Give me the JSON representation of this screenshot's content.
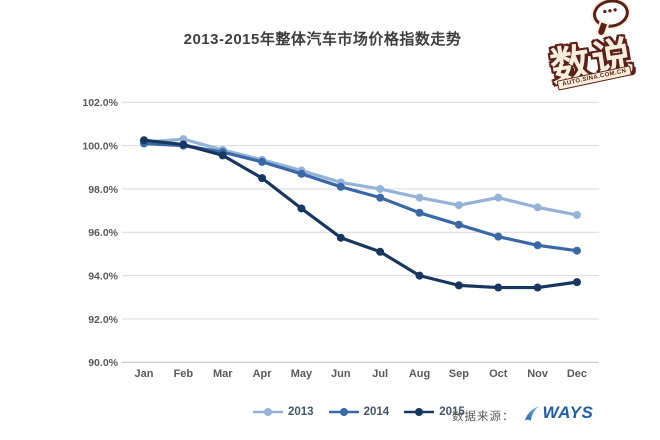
{
  "header": {
    "title": "2013-2015年整体汽车市场价格指数走势",
    "logo": {
      "text": "数说",
      "subtext": "AUTO.SINA.COM.CN",
      "bubble_dots": "•••",
      "color": "#5c2018"
    }
  },
  "chart_data": {
    "type": "line",
    "title": "2013-2015年整体汽车市场价格指数走势",
    "categories": [
      "Jan",
      "Feb",
      "Mar",
      "Apr",
      "May",
      "Jun",
      "Jul",
      "Aug",
      "Sep",
      "Oct",
      "Nov",
      "Dec"
    ],
    "series": [
      {
        "name": "2013",
        "color": "#95b3d7",
        "values": [
          100.15,
          100.3,
          99.8,
          99.35,
          98.85,
          98.3,
          98.0,
          97.6,
          97.25,
          97.6,
          97.15,
          96.8
        ]
      },
      {
        "name": "2014",
        "color": "#3a67a5",
        "values": [
          100.1,
          100.0,
          99.7,
          99.25,
          98.7,
          98.1,
          97.6,
          96.9,
          96.35,
          95.8,
          95.4,
          95.15
        ]
      },
      {
        "name": "2015",
        "color": "#17375e",
        "values": [
          100.25,
          100.05,
          99.55,
          98.5,
          97.1,
          95.75,
          95.1,
          94.0,
          93.55,
          93.45,
          93.45,
          93.7
        ]
      }
    ],
    "ylim": [
      90,
      102
    ],
    "ytick_step": 2,
    "ytick_labels": [
      "102.0%",
      "100.0%",
      "98.0%",
      "96.0%",
      "94.0%",
      "92.0%",
      "90.0%"
    ],
    "grid": true,
    "legend_position": "bottom",
    "grid_color": "#d9d9d9",
    "axis_line_color": "#bfbfbf",
    "tick_label_color": "#595959"
  },
  "footer": {
    "source_label": "数据来源：",
    "source_name": "WAYS",
    "source_color": "#1f5fa8"
  }
}
